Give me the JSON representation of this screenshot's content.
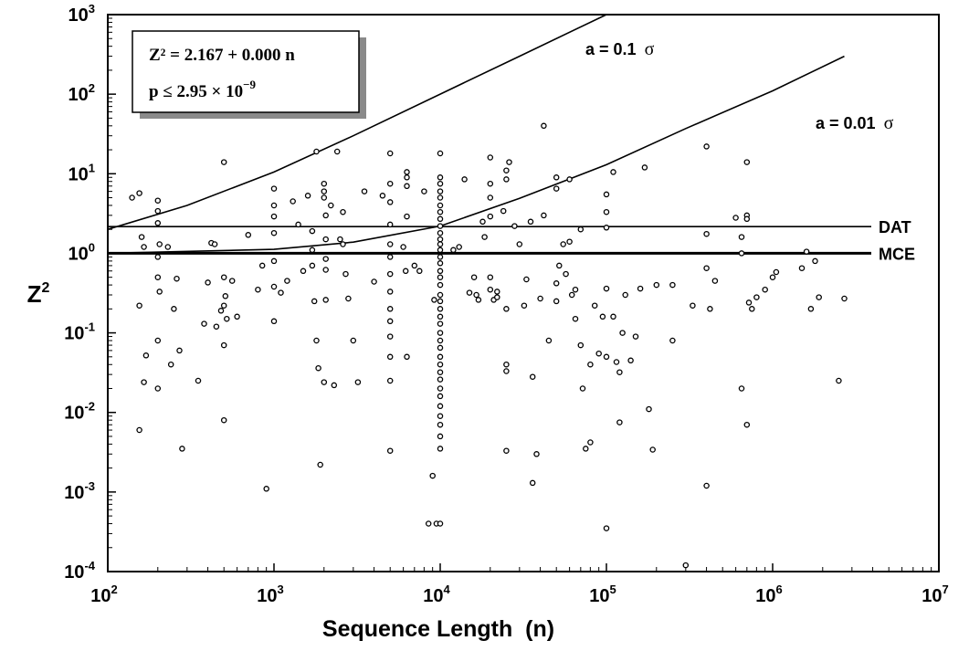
{
  "chart_data": {
    "type": "scatter",
    "xlabel": "Sequence Length  (n)",
    "ylabel": "Z",
    "ylabel_sup": "2",
    "x_scale": "log",
    "y_scale": "log",
    "xlim": [
      100,
      10000000
    ],
    "ylim": [
      0.0001,
      1000
    ],
    "x_ticks": [
      {
        "value": 100,
        "base": "10",
        "exp": "2"
      },
      {
        "value": 1000,
        "base": "10",
        "exp": "3"
      },
      {
        "value": 10000,
        "base": "10",
        "exp": "4"
      },
      {
        "value": 100000,
        "base": "10",
        "exp": "5"
      },
      {
        "value": 1000000,
        "base": "10",
        "exp": "6"
      },
      {
        "value": 10000000,
        "base": "10",
        "exp": "7"
      }
    ],
    "y_ticks": [
      {
        "value": 1000,
        "base": "10",
        "exp": "3"
      },
      {
        "value": 100,
        "base": "10",
        "exp": "2"
      },
      {
        "value": 10,
        "base": "10",
        "exp": "1"
      },
      {
        "value": 1,
        "base": "10",
        "exp": "0"
      },
      {
        "value": 0.1,
        "base": "10",
        "exp": "-1"
      },
      {
        "value": 0.01,
        "base": "10",
        "exp": "-2"
      },
      {
        "value": 0.001,
        "base": "10",
        "exp": "-3"
      },
      {
        "value": 0.0001,
        "base": "10",
        "exp": "-4"
      }
    ],
    "grid": false,
    "equation_box": {
      "line1": "Z² = 2.167 + 0.000 n",
      "line2_prefix": "p ≤ 2.95 × 10",
      "line2_exp": "−9"
    },
    "reference_lines": [
      {
        "name": "DAT",
        "y": 2.167
      },
      {
        "name": "MCE",
        "y": 1.0
      }
    ],
    "curves": [
      {
        "name": "a = 0.1 ",
        "sigma": "σ",
        "points": [
          [
            100,
            2.0
          ],
          [
            300,
            4.0
          ],
          [
            1000,
            10.5
          ],
          [
            3000,
            30
          ],
          [
            10000,
            100
          ],
          [
            30000,
            300
          ],
          [
            100000,
            1000
          ]
        ]
      },
      {
        "name": "a = 0.01 ",
        "sigma": "σ",
        "points": [
          [
            100,
            1.0
          ],
          [
            1000,
            1.12
          ],
          [
            3000,
            1.38
          ],
          [
            10000,
            2.2
          ],
          [
            30000,
            4.9
          ],
          [
            100000,
            13
          ],
          [
            300000,
            37
          ],
          [
            1000000,
            110
          ],
          [
            2700000,
            300
          ]
        ]
      }
    ],
    "series": [
      {
        "points": [
          [
            140,
            5.0
          ],
          [
            155,
            5.7
          ],
          [
            160,
            1.6
          ],
          [
            165,
            1.2
          ],
          [
            155,
            0.22
          ],
          [
            170,
            0.052
          ],
          [
            165,
            0.024
          ],
          [
            155,
            0.006
          ],
          [
            200,
            4.6
          ],
          [
            200,
            3.4
          ],
          [
            200,
            2.4
          ],
          [
            205,
            1.3
          ],
          [
            200,
            0.9
          ],
          [
            200,
            0.5
          ],
          [
            205,
            0.33
          ],
          [
            200,
            0.08
          ],
          [
            200,
            0.02
          ],
          [
            230,
            1.2
          ],
          [
            240,
            0.04
          ],
          [
            250,
            0.2
          ],
          [
            260,
            0.48
          ],
          [
            270,
            0.06
          ],
          [
            280,
            0.0035
          ],
          [
            350,
            0.025
          ],
          [
            380,
            0.13
          ],
          [
            400,
            0.43
          ],
          [
            420,
            1.35
          ],
          [
            440,
            1.3
          ],
          [
            450,
            0.12
          ],
          [
            480,
            0.19
          ],
          [
            500,
            14
          ],
          [
            500,
            0.5
          ],
          [
            510,
            0.29
          ],
          [
            500,
            0.22
          ],
          [
            500,
            0.07
          ],
          [
            500,
            0.008
          ],
          [
            520,
            0.15
          ],
          [
            560,
            0.45
          ],
          [
            600,
            0.16
          ],
          [
            700,
            1.7
          ],
          [
            800,
            0.35
          ],
          [
            850,
            0.7
          ],
          [
            900,
            0.0011
          ],
          [
            1000,
            6.5
          ],
          [
            1000,
            4.0
          ],
          [
            1000,
            2.9
          ],
          [
            1000,
            1.8
          ],
          [
            1000,
            0.8
          ],
          [
            1000,
            0.38
          ],
          [
            1000,
            0.14
          ],
          [
            1100,
            0.32
          ],
          [
            1200,
            0.45
          ],
          [
            1300,
            4.5
          ],
          [
            1400,
            2.3
          ],
          [
            1500,
            0.6
          ],
          [
            1600,
            5.3
          ],
          [
            1700,
            1.9
          ],
          [
            1700,
            1.1
          ],
          [
            1700,
            0.7
          ],
          [
            1750,
            0.25
          ],
          [
            1800,
            19
          ],
          [
            1800,
            0.08
          ],
          [
            1850,
            0.036
          ],
          [
            1900,
            0.0022
          ],
          [
            2000,
            7.5
          ],
          [
            2000,
            6.0
          ],
          [
            2000,
            5.0
          ],
          [
            2050,
            3.0
          ],
          [
            2050,
            1.5
          ],
          [
            2050,
            0.85
          ],
          [
            2050,
            0.62
          ],
          [
            2050,
            0.26
          ],
          [
            2000,
            0.024
          ],
          [
            2200,
            4.0
          ],
          [
            2300,
            0.022
          ],
          [
            2400,
            19
          ],
          [
            2500,
            1.5
          ],
          [
            2600,
            1.3
          ],
          [
            2600,
            3.3
          ],
          [
            2700,
            0.55
          ],
          [
            2800,
            0.27
          ],
          [
            3000,
            0.08
          ],
          [
            3200,
            0.024
          ],
          [
            3500,
            6.0
          ],
          [
            4000,
            0.44
          ],
          [
            4500,
            5.3
          ],
          [
            5000,
            18
          ],
          [
            5000,
            7.5
          ],
          [
            5000,
            4.4
          ],
          [
            5000,
            2.3
          ],
          [
            5000,
            1.3
          ],
          [
            5000,
            0.9
          ],
          [
            5000,
            0.55
          ],
          [
            5000,
            0.33
          ],
          [
            5000,
            0.2
          ],
          [
            5000,
            0.14
          ],
          [
            5000,
            0.09
          ],
          [
            5000,
            0.05
          ],
          [
            5000,
            0.025
          ],
          [
            5000,
            0.0033
          ],
          [
            6000,
            1.2
          ],
          [
            6200,
            0.6
          ],
          [
            6300,
            10.5
          ],
          [
            6300,
            9.0
          ],
          [
            6300,
            7.0
          ],
          [
            6300,
            2.9
          ],
          [
            6300,
            0.05
          ],
          [
            7000,
            0.7
          ],
          [
            7500,
            0.6
          ],
          [
            8000,
            6.0
          ],
          [
            8500,
            0.0004
          ],
          [
            9000,
            0.0016
          ],
          [
            9200,
            0.26
          ],
          [
            9500,
            0.0004
          ],
          [
            10000,
            18
          ],
          [
            10000,
            9.0
          ],
          [
            10000,
            7.5
          ],
          [
            10000,
            6.0
          ],
          [
            10000,
            5.0
          ],
          [
            10000,
            4.0
          ],
          [
            10000,
            3.3
          ],
          [
            10000,
            2.7
          ],
          [
            10000,
            2.2
          ],
          [
            10000,
            1.8
          ],
          [
            10000,
            1.5
          ],
          [
            10000,
            1.3
          ],
          [
            10000,
            1.1
          ],
          [
            10000,
            0.9
          ],
          [
            10000,
            0.75
          ],
          [
            10000,
            0.6
          ],
          [
            10000,
            0.5
          ],
          [
            10000,
            0.4
          ],
          [
            10000,
            0.3
          ],
          [
            10000,
            0.25
          ],
          [
            10000,
            0.2
          ],
          [
            10000,
            0.16
          ],
          [
            10000,
            0.13
          ],
          [
            10000,
            0.1
          ],
          [
            10000,
            0.08
          ],
          [
            10000,
            0.065
          ],
          [
            10000,
            0.05
          ],
          [
            10000,
            0.04
          ],
          [
            10000,
            0.032
          ],
          [
            10000,
            0.026
          ],
          [
            10000,
            0.02
          ],
          [
            10000,
            0.016
          ],
          [
            10000,
            0.012
          ],
          [
            10000,
            0.009
          ],
          [
            10000,
            0.007
          ],
          [
            10000,
            0.005
          ],
          [
            10000,
            0.0035
          ],
          [
            10000,
            0.0004
          ],
          [
            12000,
            1.1
          ],
          [
            13000,
            1.2
          ],
          [
            14000,
            8.5
          ],
          [
            15000,
            0.32
          ],
          [
            16000,
            0.5
          ],
          [
            16500,
            0.3
          ],
          [
            17000,
            0.26
          ],
          [
            18000,
            2.5
          ],
          [
            18500,
            1.6
          ],
          [
            20000,
            16
          ],
          [
            20000,
            7.5
          ],
          [
            20000,
            5.0
          ],
          [
            20000,
            2.9
          ],
          [
            20000,
            0.5
          ],
          [
            20000,
            0.35
          ],
          [
            21000,
            0.26
          ],
          [
            22000,
            0.28
          ],
          [
            22000,
            0.33
          ],
          [
            24000,
            3.4
          ],
          [
            25000,
            11
          ],
          [
            25000,
            8.5
          ],
          [
            25000,
            0.2
          ],
          [
            25000,
            0.04
          ],
          [
            25000,
            0.033
          ],
          [
            25000,
            0.0033
          ],
          [
            26000,
            14
          ],
          [
            28000,
            2.2
          ],
          [
            30000,
            1.3
          ],
          [
            32000,
            0.22
          ],
          [
            33000,
            0.47
          ],
          [
            35000,
            2.5
          ],
          [
            36000,
            0.028
          ],
          [
            36000,
            0.0013
          ],
          [
            38000,
            0.003
          ],
          [
            40000,
            0.27
          ],
          [
            42000,
            40
          ],
          [
            42000,
            3.0
          ],
          [
            45000,
            0.08
          ],
          [
            50000,
            9.0
          ],
          [
            50000,
            6.5
          ],
          [
            50000,
            0.25
          ],
          [
            50000,
            0.42
          ],
          [
            52000,
            0.7
          ],
          [
            55000,
            1.3
          ],
          [
            57000,
            0.55
          ],
          [
            60000,
            8.5
          ],
          [
            60000,
            1.4
          ],
          [
            62000,
            0.3
          ],
          [
            65000,
            0.35
          ],
          [
            65000,
            0.15
          ],
          [
            70000,
            2.0
          ],
          [
            70000,
            0.07
          ],
          [
            72000,
            0.02
          ],
          [
            75000,
            0.0035
          ],
          [
            80000,
            0.04
          ],
          [
            80000,
            0.0042
          ],
          [
            85000,
            0.22
          ],
          [
            90000,
            0.055
          ],
          [
            95000,
            0.16
          ],
          [
            100000,
            5.5
          ],
          [
            100000,
            3.3
          ],
          [
            100000,
            2.1
          ],
          [
            100000,
            0.36
          ],
          [
            100000,
            0.05
          ],
          [
            100000,
            0.00035
          ],
          [
            110000,
            10.5
          ],
          [
            110000,
            0.16
          ],
          [
            115000,
            0.043
          ],
          [
            120000,
            0.032
          ],
          [
            120000,
            0.0075
          ],
          [
            125000,
            0.1
          ],
          [
            130000,
            0.3
          ],
          [
            140000,
            0.045
          ],
          [
            150000,
            0.09
          ],
          [
            160000,
            0.36
          ],
          [
            170000,
            12
          ],
          [
            180000,
            0.011
          ],
          [
            190000,
            0.0034
          ],
          [
            200000,
            0.4
          ],
          [
            250000,
            0.4
          ],
          [
            250000,
            0.08
          ],
          [
            300000,
            0.00012
          ],
          [
            330000,
            0.22
          ],
          [
            400000,
            22
          ],
          [
            400000,
            1.75
          ],
          [
            400000,
            0.65
          ],
          [
            400000,
            0.0012
          ],
          [
            420000,
            0.2
          ],
          [
            450000,
            0.45
          ],
          [
            600000,
            2.8
          ],
          [
            650000,
            1.6
          ],
          [
            650000,
            1.0
          ],
          [
            650000,
            0.02
          ],
          [
            700000,
            14
          ],
          [
            700000,
            3.0
          ],
          [
            700000,
            2.7
          ],
          [
            700000,
            0.007
          ],
          [
            720000,
            0.24
          ],
          [
            750000,
            0.2
          ],
          [
            800000,
            0.28
          ],
          [
            900000,
            0.35
          ],
          [
            1000000,
            0.5
          ],
          [
            1050000,
            0.58
          ],
          [
            1500000,
            0.65
          ],
          [
            1600000,
            1.05
          ],
          [
            1700000,
            0.2
          ],
          [
            1800000,
            0.8
          ],
          [
            1900000,
            0.28
          ],
          [
            2500000,
            0.025
          ],
          [
            2700000,
            0.27
          ]
        ]
      }
    ]
  }
}
